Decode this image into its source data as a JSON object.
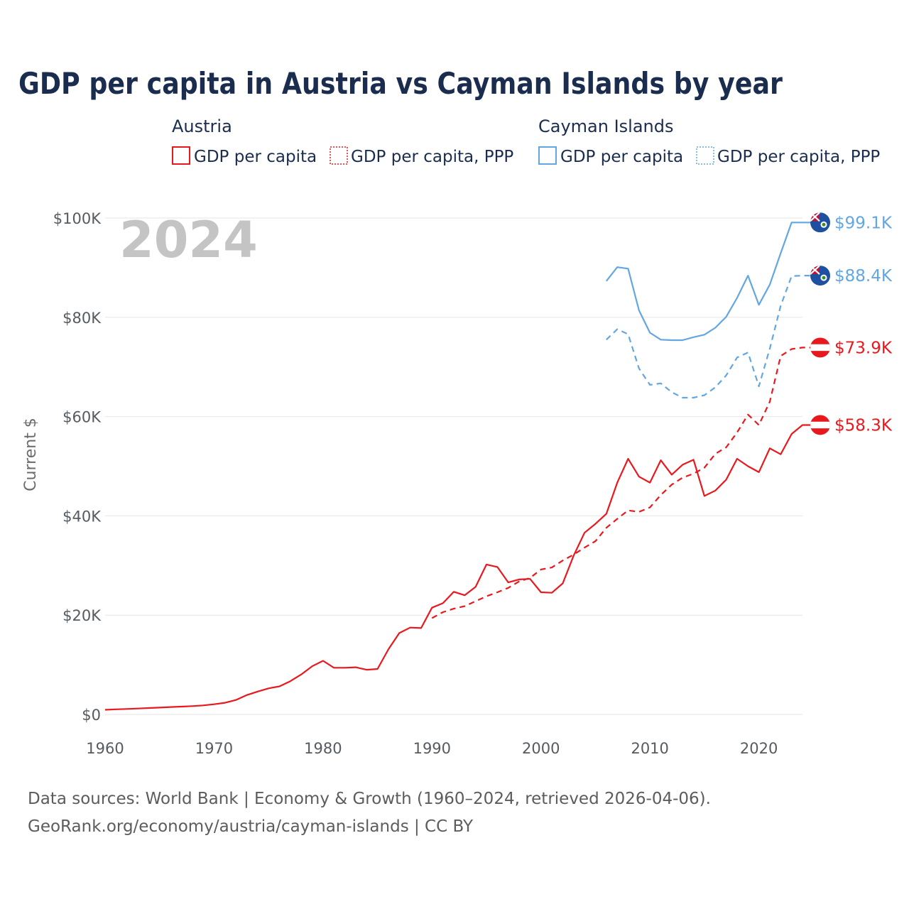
{
  "colors": {
    "austria": "#e8191e",
    "cayman": "#62a6e2",
    "title": "#1b2d4f",
    "grid": "#e6e6e6",
    "watermark": "#c4c4c4"
  },
  "chart_data": {
    "type": "line",
    "title": "GDP per capita in Austria vs Cayman Islands by year",
    "ylabel": "Current $",
    "xlabel": "",
    "xlim": [
      1960,
      2024
    ],
    "ylim": [
      0,
      100000
    ],
    "x_ticks": [
      1960,
      1970,
      1980,
      1990,
      2000,
      2010,
      2020
    ],
    "x_tick_labels": [
      "1960",
      "1970",
      "1980",
      "1990",
      "2000",
      "2010",
      "2020"
    ],
    "y_ticks": [
      0,
      20000,
      40000,
      60000,
      80000,
      100000
    ],
    "y_tick_labels": [
      "$0",
      "$20K",
      "$40K",
      "$60K",
      "$80K",
      "$100K"
    ],
    "year_watermark": "2024",
    "legend": {
      "groups": [
        {
          "name": "Austria",
          "items": [
            "GDP per capita",
            "GDP per capita, PPP"
          ]
        },
        {
          "name": "Cayman Islands",
          "items": [
            "GDP per capita",
            "GDP per capita, PPP"
          ]
        }
      ]
    },
    "series": [
      {
        "name": "Austria GDP per capita",
        "country": "Austria",
        "style": "solid",
        "end_label": "$58.3K",
        "x": [
          1960,
          1961,
          1962,
          1963,
          1964,
          1965,
          1966,
          1967,
          1968,
          1969,
          1970,
          1971,
          1972,
          1973,
          1974,
          1975,
          1976,
          1977,
          1978,
          1979,
          1980,
          1981,
          1982,
          1983,
          1984,
          1985,
          1986,
          1987,
          1988,
          1989,
          1990,
          1991,
          1992,
          1993,
          1994,
          1995,
          1996,
          1997,
          1998,
          1999,
          2000,
          2001,
          2002,
          2003,
          2004,
          2005,
          2006,
          2007,
          2008,
          2009,
          2010,
          2011,
          2012,
          2013,
          2014,
          2015,
          2016,
          2017,
          2018,
          2019,
          2020,
          2021,
          2022,
          2023,
          2024
        ],
        "y": [
          935,
          1030,
          1105,
          1190,
          1290,
          1380,
          1490,
          1570,
          1670,
          1820,
          2040,
          2350,
          2900,
          3890,
          4600,
          5250,
          5650,
          6700,
          8050,
          9700,
          10800,
          9400,
          9400,
          9500,
          9000,
          9150,
          13100,
          16400,
          17500,
          17400,
          21500,
          22400,
          24700,
          24000,
          25700,
          30200,
          29700,
          26600,
          27200,
          27300,
          24600,
          24500,
          26400,
          32000,
          36600,
          38400,
          40400,
          46700,
          51500,
          47900,
          46700,
          51200,
          48300,
          50300,
          51300,
          44000,
          45100,
          47300,
          51500,
          50000,
          48800,
          53600,
          52400,
          56500,
          58300
        ]
      },
      {
        "name": "Austria GDP per capita, PPP",
        "country": "Austria",
        "style": "dashed",
        "end_label": "$73.9K",
        "x": [
          1990,
          1991,
          1992,
          1993,
          1994,
          1995,
          1996,
          1997,
          1998,
          1999,
          2000,
          2001,
          2002,
          2003,
          2004,
          2005,
          2006,
          2007,
          2008,
          2009,
          2010,
          2011,
          2012,
          2013,
          2014,
          2015,
          2016,
          2017,
          2018,
          2019,
          2020,
          2021,
          2022,
          2023,
          2024
        ],
        "y": [
          19400,
          20600,
          21300,
          21800,
          22800,
          23800,
          24600,
          25500,
          26800,
          27500,
          29200,
          29600,
          31000,
          32200,
          33600,
          34900,
          37600,
          39400,
          41100,
          40800,
          41700,
          44200,
          46300,
          47700,
          48500,
          49700,
          52500,
          53800,
          56800,
          60400,
          58300,
          63000,
          72200,
          73600,
          73900
        ]
      },
      {
        "name": "Cayman Islands GDP per capita",
        "country": "Cayman Islands",
        "style": "solid",
        "end_label": "$99.1K",
        "x": [
          2006,
          2007,
          2008,
          2009,
          2010,
          2011,
          2012,
          2013,
          2014,
          2015,
          2016,
          2017,
          2018,
          2019,
          2020,
          2021,
          2022,
          2023,
          2024
        ],
        "y": [
          87300,
          90100,
          89800,
          81400,
          76900,
          75500,
          75400,
          75400,
          76000,
          76500,
          77900,
          80100,
          83900,
          88400,
          82500,
          86600,
          92900,
          99100,
          99100
        ]
      },
      {
        "name": "Cayman Islands GDP per capita, PPP",
        "country": "Cayman Islands",
        "style": "dashed",
        "end_label": "$88.4K",
        "x": [
          2006,
          2007,
          2008,
          2009,
          2010,
          2011,
          2012,
          2013,
          2014,
          2015,
          2016,
          2017,
          2018,
          2019,
          2020,
          2021,
          2022,
          2023,
          2024
        ],
        "y": [
          75500,
          77600,
          76600,
          69700,
          66400,
          66700,
          64900,
          63800,
          63800,
          64300,
          65900,
          68300,
          71900,
          72900,
          66100,
          73700,
          82300,
          88300,
          88400
        ]
      }
    ],
    "footer_lines": [
      "Data sources: World Bank | Economy & Growth (1960–2024, retrieved 2026-04-06).",
      "GeoRank.org/economy/austria/cayman-islands | CC BY"
    ]
  }
}
